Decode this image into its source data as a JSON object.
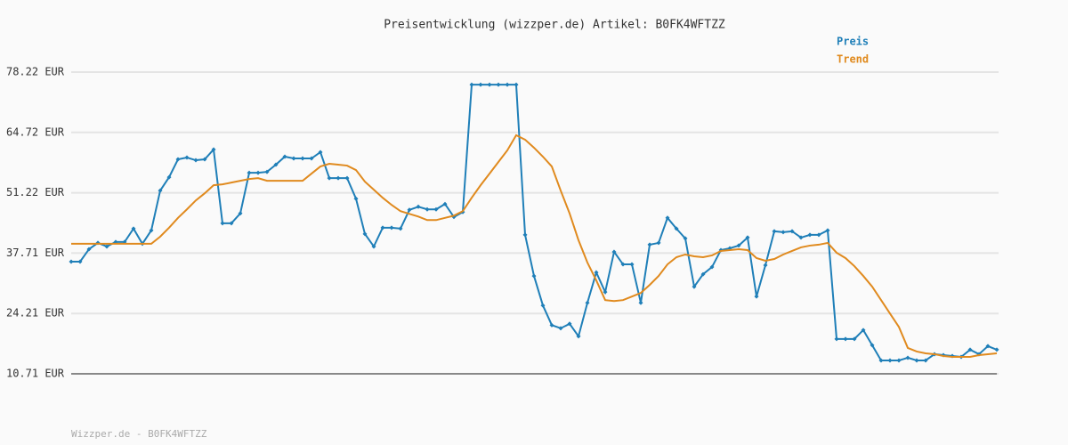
{
  "chart_data": {
    "type": "line",
    "title": "Preisentwicklung (wizzper.de) Artikel: B0FK4WFTZZ",
    "footer": "Wizzper.de - B0FK4WFTZZ",
    "legend": "top-right",
    "grid": true,
    "ylim": [
      10.71,
      78.22
    ],
    "yticks": [
      {
        "value": 10.71,
        "label": "10.71 EUR"
      },
      {
        "value": 24.21,
        "label": "24.21 EUR"
      },
      {
        "value": 37.71,
        "label": "37.71 EUR"
      },
      {
        "value": 51.22,
        "label": "51.22 EUR"
      },
      {
        "value": 64.72,
        "label": "64.72 EUR"
      },
      {
        "value": 78.22,
        "label": "78.22 EUR"
      }
    ],
    "series": [
      {
        "name": "Preis",
        "color": "#1f7fb8",
        "marker": "diamond",
        "values": [
          35.8,
          35.8,
          38.6,
          40.0,
          39.2,
          40.2,
          40.2,
          43.2,
          39.8,
          42.8,
          51.7,
          54.7,
          58.7,
          59.1,
          58.5,
          58.7,
          60.9,
          44.4,
          44.4,
          46.6,
          55.7,
          55.7,
          55.9,
          57.5,
          59.3,
          58.9,
          58.9,
          58.9,
          60.3,
          54.5,
          54.5,
          54.5,
          49.9,
          42.0,
          39.2,
          43.4,
          43.4,
          43.2,
          47.4,
          48.1,
          47.5,
          47.5,
          48.7,
          45.8,
          46.9,
          75.4,
          75.4,
          75.4,
          75.4,
          75.4,
          75.4,
          41.8,
          32.6,
          26.0,
          21.6,
          20.9,
          21.9,
          19.1,
          26.6,
          33.4,
          29.0,
          38.0,
          35.2,
          35.2,
          26.6,
          39.6,
          40.0,
          45.6,
          43.2,
          41.0,
          30.2,
          33.0,
          34.6,
          38.4,
          38.8,
          39.4,
          41.2,
          28.0,
          35.0,
          42.6,
          42.4,
          42.6,
          41.2,
          41.8,
          41.8,
          42.8,
          18.5,
          18.5,
          18.5,
          20.5,
          17.1,
          13.7,
          13.7,
          13.7,
          14.3,
          13.7,
          13.7,
          15.1,
          14.9,
          14.7,
          14.5,
          16.1,
          15.1,
          16.9,
          16.1
        ]
      },
      {
        "name": "Trend",
        "color": "#e08a1e",
        "values": [
          39.8,
          39.8,
          39.8,
          39.8,
          39.8,
          39.8,
          39.8,
          39.8,
          39.8,
          39.8,
          41.4,
          43.4,
          45.6,
          47.5,
          49.5,
          51.1,
          52.9,
          53.1,
          53.5,
          53.9,
          54.3,
          54.5,
          53.9,
          53.9,
          53.9,
          53.9,
          53.9,
          55.5,
          57.1,
          57.7,
          57.5,
          57.3,
          56.3,
          53.7,
          51.9,
          50.1,
          48.5,
          47.1,
          46.5,
          45.9,
          45.1,
          45.1,
          45.6,
          46.1,
          47.1,
          50.1,
          52.9,
          55.5,
          58.1,
          60.7,
          64.1,
          63.1,
          61.3,
          59.3,
          57.1,
          51.7,
          46.6,
          40.6,
          35.6,
          31.6,
          27.2,
          27.0,
          27.2,
          28.0,
          28.8,
          30.6,
          32.6,
          35.2,
          36.8,
          37.4,
          37.0,
          36.8,
          37.2,
          38.2,
          38.4,
          38.6,
          38.4,
          36.6,
          36.0,
          36.4,
          37.4,
          38.2,
          39.0,
          39.4,
          39.6,
          40.0,
          37.8,
          36.6,
          34.8,
          32.6,
          30.2,
          27.2,
          24.2,
          21.2,
          16.5,
          15.7,
          15.3,
          15.1,
          14.7,
          14.5,
          14.5,
          14.5,
          14.9,
          15.1,
          15.3
        ]
      }
    ]
  }
}
